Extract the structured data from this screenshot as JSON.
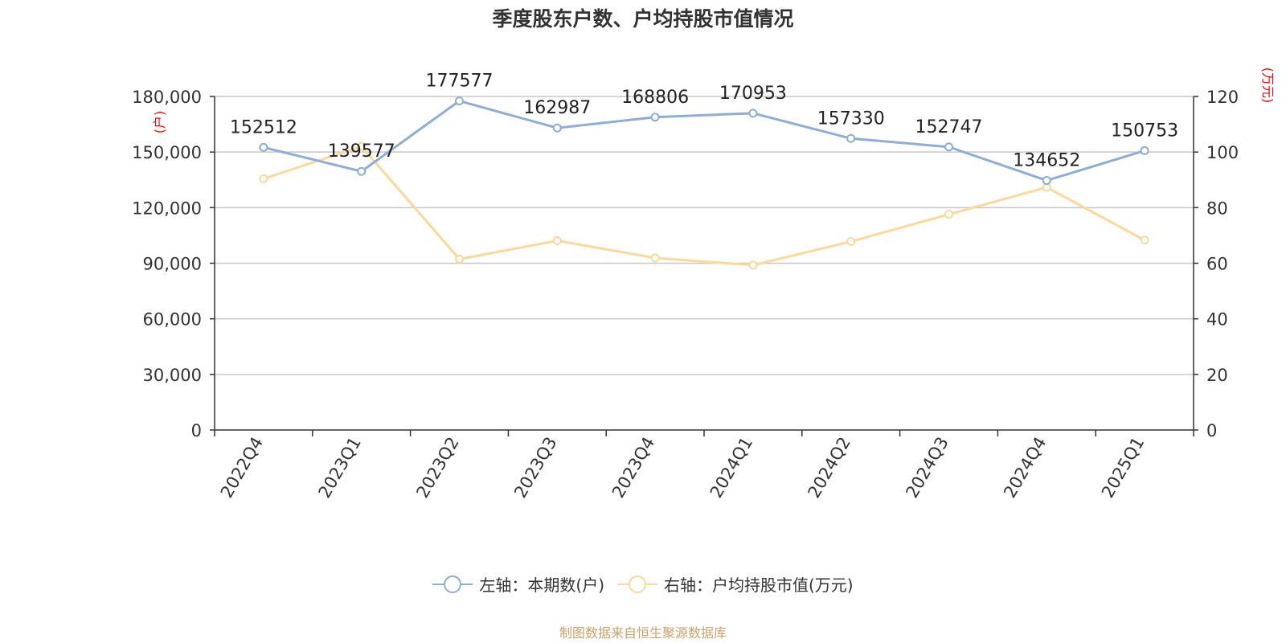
{
  "chart_data": {
    "type": "line",
    "title": "季度股东户数、户均持股市值情况",
    "categories": [
      "2022Q4",
      "2023Q1",
      "2023Q2",
      "2023Q3",
      "2023Q4",
      "2024Q1",
      "2024Q2",
      "2024Q3",
      "2024Q4",
      "2025Q1"
    ],
    "y_left": {
      "label": "(户)",
      "ylim": [
        0,
        180000
      ],
      "ticks": [
        "0",
        "30,000",
        "60,000",
        "90,000",
        "120,000",
        "150,000",
        "180,000"
      ]
    },
    "y_right": {
      "label": "(万元)",
      "ylim": [
        0,
        120
      ],
      "ticks": [
        "0",
        "20",
        "40",
        "60",
        "80",
        "100",
        "120"
      ]
    },
    "series": [
      {
        "name": "左轴：本期数(户)",
        "axis": "left",
        "color": "#8eadd8",
        "values": [
          152512,
          139577,
          177577,
          162987,
          168806,
          170953,
          157330,
          152747,
          134652,
          150753
        ],
        "labels": [
          "152512",
          "139577",
          "177577",
          "162987",
          "168806",
          "170953",
          "157330",
          "152747",
          "134652",
          "150753"
        ]
      },
      {
        "name": "右轴：户均持股市值(万元)",
        "axis": "right",
        "color": "#fcd99a",
        "values": [
          90.4,
          102.0,
          61.5,
          68.1,
          61.9,
          59.3,
          67.8,
          77.6,
          87.3,
          68.3
        ]
      }
    ],
    "grid": true,
    "legend_position": "bottom-center"
  },
  "source": "制图数据来自恒生聚源数据库"
}
